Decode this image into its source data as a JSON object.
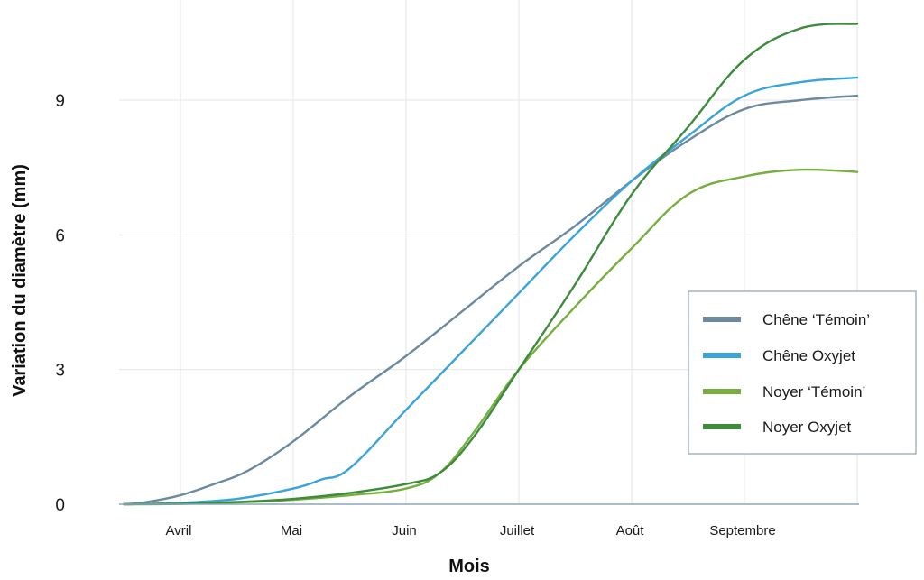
{
  "chart_data": {
    "type": "line",
    "title": "",
    "xlabel": "Mois",
    "ylabel": "Variation du diamètre (mm)",
    "x_ticks": [
      "Avril",
      "Mai",
      "Juin",
      "Juillet",
      "Août",
      "Septembre"
    ],
    "x_index_range": [
      -0.5,
      6
    ],
    "yticks": [
      0,
      3,
      6,
      9
    ],
    "ylim": [
      0,
      11
    ],
    "grid": true,
    "legend_position": "right",
    "series": [
      {
        "name": "Chêne ‘Témoin’",
        "color": "#6b8aa0",
        "x": [
          -0.5,
          -0.3,
          0,
          0.3,
          0.6,
          1,
          1.5,
          2,
          2.5,
          3,
          3.5,
          4,
          4.5,
          5,
          5.5,
          6
        ],
        "y": [
          0,
          0.05,
          0.2,
          0.45,
          0.75,
          1.4,
          2.4,
          3.3,
          4.3,
          5.3,
          6.2,
          7.2,
          8.1,
          8.8,
          9.0,
          9.1
        ]
      },
      {
        "name": "Chêne Oxyjet",
        "color": "#3aa3d8",
        "x": [
          -0.5,
          0,
          0.5,
          1,
          1.25,
          1.5,
          2,
          2.5,
          3,
          3.5,
          4,
          4.5,
          5,
          5.5,
          6
        ],
        "y": [
          0,
          0.03,
          0.12,
          0.35,
          0.55,
          0.8,
          2.1,
          3.4,
          4.7,
          6.0,
          7.2,
          8.2,
          9.1,
          9.4,
          9.5
        ]
      },
      {
        "name": "Noyer ‘Témoin’",
        "color": "#75b03e",
        "x": [
          -0.5,
          0,
          0.5,
          1,
          1.5,
          2,
          2.3,
          2.6,
          3,
          3.5,
          4,
          4.5,
          5,
          5.5,
          6
        ],
        "y": [
          0,
          0.01,
          0.04,
          0.1,
          0.2,
          0.35,
          0.7,
          1.6,
          3.0,
          4.4,
          5.7,
          6.9,
          7.3,
          7.45,
          7.4
        ]
      },
      {
        "name": "Noyer Oxyjet",
        "color": "#3d8c3d",
        "x": [
          -0.5,
          0,
          0.5,
          1,
          1.5,
          2,
          2.3,
          2.6,
          3,
          3.5,
          4,
          4.5,
          5,
          5.5,
          6
        ],
        "y": [
          0,
          0.01,
          0.05,
          0.12,
          0.25,
          0.45,
          0.7,
          1.5,
          3.0,
          4.9,
          6.9,
          8.4,
          9.9,
          10.6,
          10.7
        ]
      }
    ]
  }
}
